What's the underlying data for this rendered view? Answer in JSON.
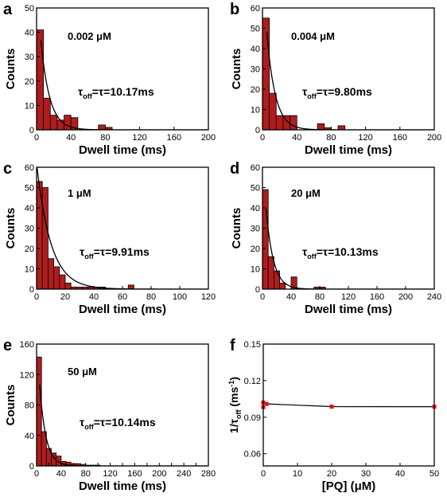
{
  "chart_data": [
    {
      "panel": "a",
      "type": "bar",
      "annotation": "0.002 μM",
      "tau_label": {
        "sub": "off",
        "value": "=τ=10.17ms"
      },
      "xlabel": "Dwell time (ms)",
      "ylabel": "Counts",
      "xlim": [
        0,
        200
      ],
      "ylim": [
        0,
        50
      ],
      "xticks": [
        0,
        40,
        80,
        120,
        160,
        200
      ],
      "yticks": [
        0,
        10,
        20,
        30,
        40,
        50
      ],
      "bin_width": 8,
      "bin_start": 0,
      "values": [
        41,
        13,
        6,
        4,
        6,
        5,
        0,
        0,
        0,
        2,
        1
      ],
      "tau": 10.17,
      "fit_amplitude": 60,
      "fit_x_start": 5
    },
    {
      "panel": "b",
      "type": "bar",
      "annotation": "0.004 μM",
      "tau_label": {
        "sub": "off",
        "value": "=τ=9.80ms"
      },
      "xlabel": "Dwell time (ms)",
      "ylabel": "Counts",
      "xlim": [
        0,
        200
      ],
      "ylim": [
        0,
        60
      ],
      "xticks": [
        0,
        40,
        80,
        120,
        160,
        200
      ],
      "yticks": [
        0,
        10,
        20,
        30,
        40,
        50,
        60
      ],
      "bin_width": 8,
      "bin_start": 0,
      "values": [
        55,
        18,
        7,
        7,
        7,
        0,
        0,
        0,
        3,
        1,
        0,
        2
      ],
      "tau": 9.8,
      "fit_amplitude": 80,
      "fit_x_start": 5
    },
    {
      "panel": "c",
      "type": "bar",
      "annotation": "1 μM",
      "tau_label": {
        "sub": "off",
        "value": "=τ=9.91ms"
      },
      "xlabel": "Dwell time (ms)",
      "ylabel": "Counts",
      "xlim": [
        0,
        120
      ],
      "ylim": [
        0,
        60
      ],
      "xticks": [
        0,
        20,
        40,
        60,
        80,
        100,
        120
      ],
      "yticks": [
        0,
        10,
        20,
        30,
        40,
        50,
        60
      ],
      "bin_width": 4,
      "bin_start": 0,
      "values": [
        53,
        50,
        15,
        11,
        7,
        3,
        1,
        1,
        1,
        1,
        1,
        1,
        0,
        0,
        0,
        0,
        2
      ],
      "tau": 9.91,
      "fit_amplitude": 62,
      "fit_x_start": 0
    },
    {
      "panel": "d",
      "type": "bar",
      "annotation": "20 μM",
      "tau_label": {
        "sub": "off",
        "value": "=τ=10.13ms"
      },
      "xlabel": "Dwell time (ms)",
      "ylabel": "Counts",
      "xlim": [
        0,
        240
      ],
      "ylim": [
        0,
        60
      ],
      "xticks": [
        0,
        40,
        80,
        120,
        160,
        200,
        240
      ],
      "yticks": [
        0,
        10,
        20,
        30,
        40,
        50,
        60
      ],
      "bin_width": 8,
      "bin_start": 0,
      "values": [
        49,
        16,
        9,
        3,
        0,
        6,
        0,
        0,
        0,
        1,
        1
      ],
      "tau": 10.13,
      "fit_amplitude": 65,
      "fit_x_start": 5
    },
    {
      "panel": "e",
      "type": "bar",
      "annotation": "50 μM",
      "tau_label": {
        "sub": "off",
        "value": "=τ=10.14ms"
      },
      "xlabel": "Dwell time (ms)",
      "ylabel": "Counts",
      "xlim": [
        0,
        280
      ],
      "ylim": [
        0,
        160
      ],
      "xticks": [
        0,
        20,
        40,
        60,
        80,
        100,
        120,
        140,
        160,
        180,
        200,
        220,
        240,
        260,
        280
      ],
      "xtick_labels": [
        "0",
        "",
        "40",
        "",
        "80",
        "",
        "120",
        "",
        "160",
        "",
        "200",
        "",
        "240",
        "",
        "280"
      ],
      "yticks": [
        0,
        40,
        80,
        120,
        160
      ],
      "bin_width": 8,
      "bin_start": 0,
      "values": [
        143,
        45,
        23,
        17,
        13,
        6,
        5,
        3,
        3,
        2,
        1,
        1,
        1
      ],
      "tau": 10.14,
      "fit_amplitude": 175,
      "fit_x_start": 5
    },
    {
      "panel": "f",
      "type": "line",
      "annotation": "",
      "ylabel_parts": {
        "main": "1/τ",
        "sub": "off",
        "unit": " (ms",
        "sup": "-1",
        "close": ")"
      },
      "xlabel": "[PQ] (μM)",
      "xlim": [
        0,
        50
      ],
      "ylim": [
        0.05,
        0.15
      ],
      "xticks": [
        0,
        10,
        20,
        30,
        40,
        50
      ],
      "yticks": [
        0.06,
        0.09,
        0.12,
        0.15
      ],
      "ytick_labels": [
        "0.06",
        "0.09",
        "0.12",
        "0.15"
      ],
      "series": [
        {
          "x": [
            0.002,
            0.004,
            1,
            20,
            50
          ],
          "y": [
            0.0983,
            0.102,
            0.1009,
            0.0987,
            0.0986
          ]
        }
      ]
    }
  ],
  "style": {
    "bar_fill": "#b01c1c",
    "bar_stroke": "#000000",
    "fit_color": "#000000",
    "marker_color": "#e3131b"
  }
}
